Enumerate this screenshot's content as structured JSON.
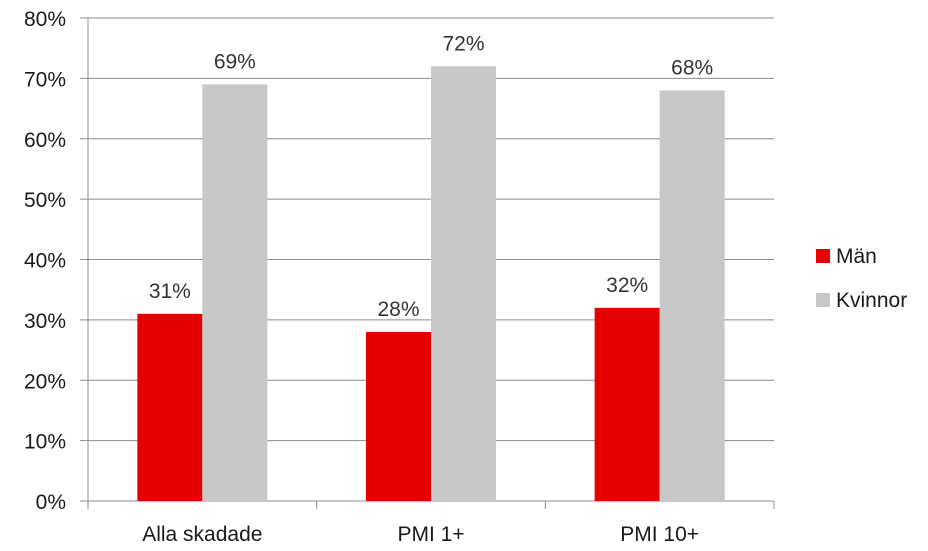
{
  "chart_data": {
    "type": "bar",
    "title": "",
    "xlabel": "",
    "ylabel": "",
    "categories": [
      "Alla skadade",
      "PMI 1+",
      "PMI 10+"
    ],
    "series": [
      {
        "name": "Män",
        "values": [
          31,
          28,
          32
        ],
        "labels": [
          "31%",
          "28%",
          "32%"
        ],
        "color": "#e60000"
      },
      {
        "name": "Kvinnor",
        "values": [
          69,
          72,
          68
        ],
        "labels": [
          "69%",
          "72%",
          "68%"
        ],
        "color": "#c8c8c8"
      }
    ],
    "ylim": [
      0,
      80
    ],
    "yticks": [
      0,
      10,
      20,
      30,
      40,
      50,
      60,
      70,
      80
    ],
    "ytick_labels": [
      "0%",
      "10%",
      "20%",
      "30%",
      "40%",
      "50%",
      "60%",
      "70%",
      "80%"
    ],
    "grid": true,
    "legend_position": "right"
  }
}
